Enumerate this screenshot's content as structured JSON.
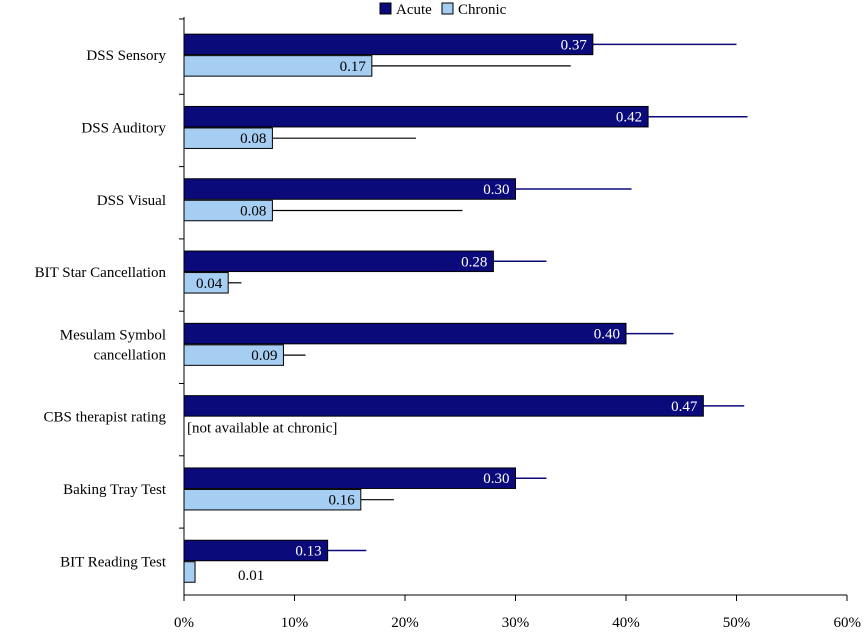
{
  "chart_data": {
    "type": "bar",
    "orientation": "horizontal",
    "categories": [
      [
        "DSS Sensory"
      ],
      [
        "DSS Auditory"
      ],
      [
        "DSS Visual"
      ],
      [
        "BIT Star Cancellation"
      ],
      [
        "Mesulam Symbol",
        "cancellation"
      ],
      [
        "CBS therapist rating"
      ],
      [
        "Baking Tray Test"
      ],
      [
        "BIT Reading Test"
      ]
    ],
    "series": [
      {
        "name": "Acute",
        "color": "#0a0a7a",
        "values": [
          0.37,
          0.42,
          0.3,
          0.28,
          0.4,
          0.47,
          0.3,
          0.13
        ],
        "labels": [
          "0.37",
          "0.42",
          "0.30",
          "0.28",
          "0.40",
          "0.47",
          "0.30",
          "0.13"
        ],
        "error_upper": [
          0.5,
          0.51,
          0.405,
          0.328,
          0.443,
          0.507,
          0.328,
          0.165
        ]
      },
      {
        "name": "Chronic",
        "color": "#a6cdf2",
        "values": [
          0.17,
          0.08,
          0.08,
          0.04,
          0.09,
          null,
          0.16,
          0.01
        ],
        "labels": [
          "0.17",
          "0.08",
          "0.08",
          "0.04",
          "0.09",
          null,
          "0.16",
          "0.01"
        ],
        "error_upper": [
          0.35,
          0.21,
          0.252,
          0.052,
          0.11,
          null,
          0.19,
          null
        ]
      }
    ],
    "missing_note": "[not available at chronic]",
    "xlim": [
      0,
      0.6
    ],
    "x_ticks": [
      0,
      0.1,
      0.2,
      0.3,
      0.4,
      0.5,
      0.6
    ],
    "x_tick_labels": [
      "0%",
      "10%",
      "20%",
      "30%",
      "40%",
      "50%",
      "60%"
    ],
    "legend": {
      "position": "top-center",
      "entries": [
        "Acute",
        "Chronic"
      ]
    },
    "title": "",
    "xlabel": "",
    "ylabel": ""
  }
}
